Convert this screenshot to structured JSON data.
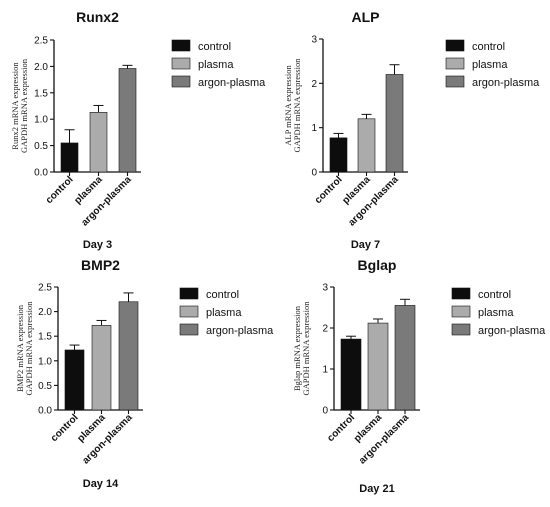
{
  "colors": {
    "control": "#0d0d0d",
    "plasma": "#ababab",
    "argon_plasma": "#7a7a7a",
    "axis": "#111111"
  },
  "chart_data": [
    {
      "type": "bar",
      "title": "Runx2",
      "xlabel": "Day 3",
      "ylabel_lines": [
        "Runx2 mRNA expression",
        "GAPDH mRNA expression"
      ],
      "categories": [
        "control",
        "plasma",
        "argon-plasma"
      ],
      "values": [
        0.55,
        1.13,
        1.96
      ],
      "errors": [
        0.25,
        0.13,
        0.06
      ],
      "ylim": [
        0,
        2.5
      ],
      "yticks": [
        "0.0",
        "0.5",
        "1.0",
        "1.5",
        "2.0",
        "2.5"
      ],
      "legend": [
        "control",
        "plasma",
        "argon-plasma"
      ],
      "legend_position": "right",
      "grid": false
    },
    {
      "type": "bar",
      "title": "ALP",
      "xlabel": "Day 7",
      "ylabel_lines": [
        "ALP mRNA expression",
        "GAPDH mRNA expression"
      ],
      "categories": [
        "control",
        "plasma",
        "argon-plasma"
      ],
      "values": [
        0.77,
        1.2,
        2.2
      ],
      "errors": [
        0.1,
        0.1,
        0.22
      ],
      "ylim": [
        0,
        3
      ],
      "yticks": [
        "0",
        "1",
        "2",
        "3"
      ],
      "legend": [
        "control",
        "plasma",
        "argon-plasma"
      ],
      "legend_position": "right",
      "grid": false
    },
    {
      "type": "bar",
      "title": "BMP2",
      "xlabel": "Day 14",
      "ylabel_lines": [
        "BMP2 mRNA expression",
        "GAPDH mRNA expression"
      ],
      "categories": [
        "control",
        "plasma",
        "argon-plasma"
      ],
      "values": [
        1.22,
        1.72,
        2.2
      ],
      "errors": [
        0.1,
        0.1,
        0.18
      ],
      "ylim": [
        0,
        2.5
      ],
      "yticks": [
        "0.0",
        "0.5",
        "1.0",
        "1.5",
        "2.0",
        "2.5"
      ],
      "legend": [
        "control",
        "plasma",
        "argon-plasma"
      ],
      "legend_position": "right",
      "grid": false
    },
    {
      "type": "bar",
      "title": "Bglap",
      "xlabel": "Day 21",
      "ylabel_lines": [
        "Bglap mRNA expression",
        "GAPDH mRNA expression"
      ],
      "categories": [
        "control",
        "plasma",
        "argon-plasma"
      ],
      "values": [
        1.73,
        2.12,
        2.55
      ],
      "errors": [
        0.07,
        0.1,
        0.15
      ],
      "ylim": [
        0,
        3
      ],
      "yticks": [
        "0",
        "1",
        "2",
        "3"
      ],
      "legend": [
        "control",
        "plasma",
        "argon-plasma"
      ],
      "legend_position": "right",
      "grid": false
    }
  ]
}
